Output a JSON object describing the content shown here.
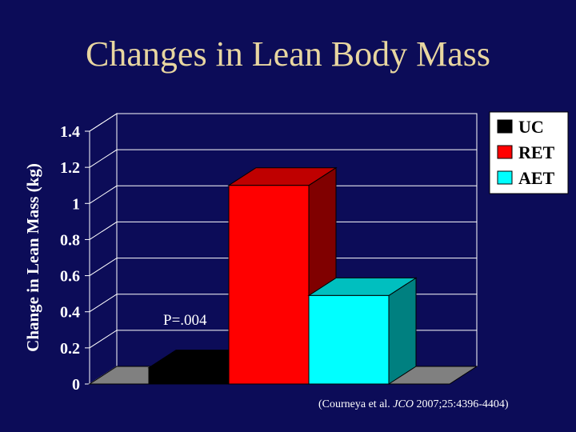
{
  "slide": {
    "title": "Changes in Lean Body Mass",
    "citation": {
      "prefix": "(Courneya et al. ",
      "journal": "JCO",
      "suffix": " 2007;25:4396-4404)"
    }
  },
  "colors": {
    "background": "#0c0c58",
    "title": "#e8d6a0",
    "uc": "#000000",
    "ret": "#ff0000",
    "aet": "#00ffff"
  },
  "chart_data": {
    "type": "bar",
    "style": "3d",
    "title": "",
    "xlabel": "",
    "ylabel": "Change in Lean Mass (kg)",
    "ylim": [
      0,
      1.4
    ],
    "yticks": [
      "0",
      "0.2",
      "0.4",
      "0.6",
      "0.8",
      "1",
      "1.2",
      "1.4"
    ],
    "grid": true,
    "legend_position": "top-right",
    "series": [
      {
        "name": "UC",
        "value": 0.09,
        "color": "#000000"
      },
      {
        "name": "RET",
        "value": 1.1,
        "color": "#ff0000"
      },
      {
        "name": "AET",
        "value": 0.49,
        "color": "#00ffff"
      }
    ],
    "annotations": [
      {
        "text": "P=.004"
      }
    ]
  }
}
